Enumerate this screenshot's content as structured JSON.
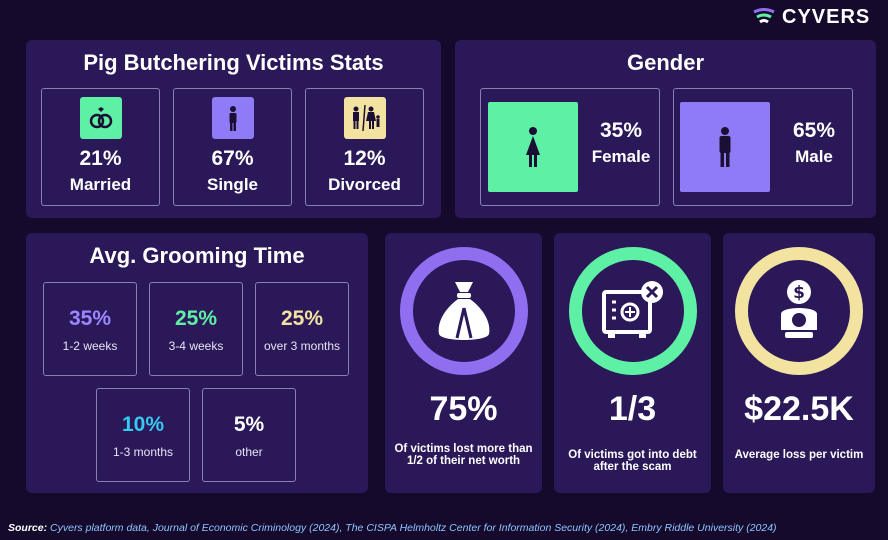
{
  "brand": {
    "name": "CYVERS"
  },
  "victims_stats": {
    "title": "Pig Butchering Victims Stats",
    "items": [
      {
        "pct": "21%",
        "label": "Married",
        "icon": "rings-icon",
        "color": "#5ef0a4"
      },
      {
        "pct": "67%",
        "label": "Single",
        "icon": "person-icon",
        "color": "#8f7bf5"
      },
      {
        "pct": "12%",
        "label": "Divorced",
        "icon": "family-icon",
        "color": "#f3e3a1"
      }
    ]
  },
  "gender": {
    "title": "Gender",
    "items": [
      {
        "pct": "35%",
        "label": "Female",
        "icon": "female-icon",
        "color": "#5ef0a4"
      },
      {
        "pct": "65%",
        "label": "Male",
        "icon": "male-icon",
        "color": "#8f7bf5"
      }
    ]
  },
  "grooming": {
    "title": "Avg. Grooming Time",
    "items": [
      {
        "pct": "35%",
        "label": "1-2 weeks",
        "color": "#9b87ff"
      },
      {
        "pct": "25%",
        "label": "3-4 weeks",
        "color": "#5ef0a4"
      },
      {
        "pct": "25%",
        "label": "over 3 months",
        "color": "#f3e3a1"
      },
      {
        "pct": "10%",
        "label": "1-3 months",
        "color": "#37c9f0"
      },
      {
        "pct": "5%",
        "label": "other",
        "color": "#ffffff"
      }
    ]
  },
  "kpis": [
    {
      "value": "75%",
      "desc": "Of victims lost more than 1/2 of their net worth",
      "ring_color": "#8f6ff0",
      "icon": "money-bag-icon"
    },
    {
      "value": "1/3",
      "desc": "Of victims got into debt after the scam",
      "ring_color": "#5ef0a4",
      "icon": "safe-icon"
    },
    {
      "value": "$22.5K",
      "desc": "Average loss per victim",
      "ring_color": "#f3e3a1",
      "icon": "dollar-person-icon"
    }
  ],
  "source": {
    "label": "Source:",
    "text": "Cyvers platform data, Journal of Economic Criminology (2024), The CISPA Helmholtz Center for Information Security (2024), Embry Riddle University (2024)"
  }
}
